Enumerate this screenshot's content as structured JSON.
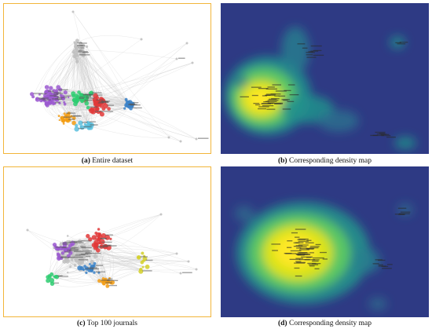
{
  "panels": [
    {
      "letter": "(a)",
      "caption": "Entire dataset",
      "kind": "network"
    },
    {
      "letter": "(b)",
      "caption": "Corresponding density map",
      "kind": "density"
    },
    {
      "letter": "(c)",
      "caption": "Top 100 journals",
      "kind": "network"
    },
    {
      "letter": "(d)",
      "caption": "Corresponding density map",
      "kind": "density"
    }
  ],
  "colors": {
    "border": "#f2b53a",
    "density_bg": "#2e3a84",
    "clusters": [
      "#e23a3a",
      "#3b82c8",
      "#9b59d0",
      "#f39c12",
      "#2ecc71",
      "#5bc0de",
      "#c0c0c0",
      "#d4d02a"
    ]
  }
}
